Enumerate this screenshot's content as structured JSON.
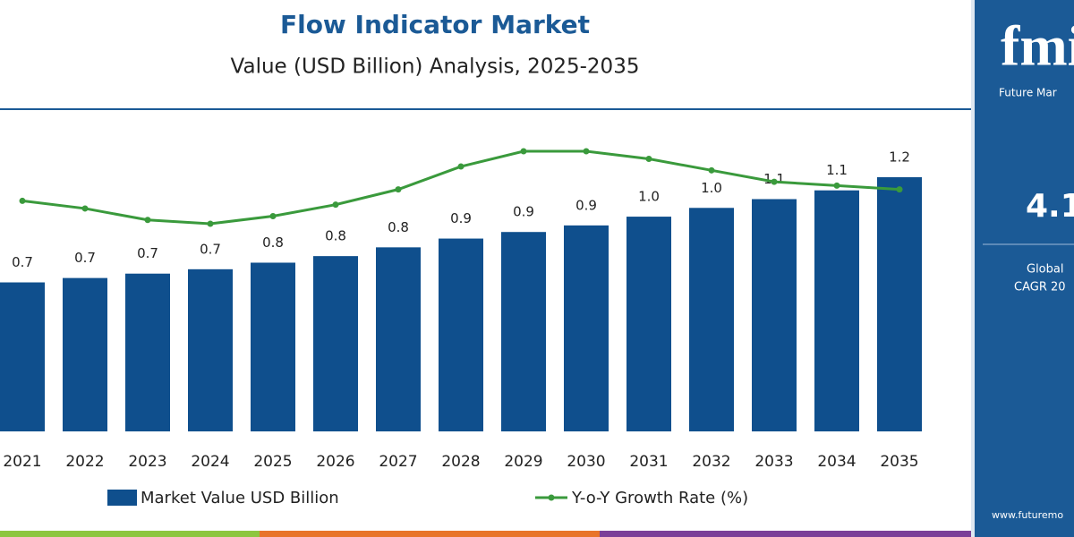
{
  "chart_data": {
    "type": "bar",
    "title": "Flow Indicator Market",
    "subtitle": "Value (USD Billion) Analysis, 2025-2035",
    "categories": [
      "2021",
      "2022",
      "2023",
      "2024",
      "2025",
      "2026",
      "2027",
      "2028",
      "2029",
      "2030",
      "2031",
      "2032",
      "2033",
      "2034",
      "2035"
    ],
    "series": [
      {
        "name": "Market Value USD Billion",
        "type": "bar",
        "color": "#0f4f8d",
        "values": [
          0.68,
          0.7,
          0.72,
          0.74,
          0.77,
          0.8,
          0.84,
          0.88,
          0.91,
          0.94,
          0.98,
          1.02,
          1.06,
          1.1,
          1.16
        ],
        "value_labels": [
          "0.7",
          "0.7",
          "0.7",
          "0.7",
          "0.8",
          "0.8",
          "0.8",
          "0.9",
          "0.9",
          "0.9",
          "1.0",
          "1.0",
          "1.1",
          "1.1",
          "1.2"
        ]
      },
      {
        "name": "Y-o-Y Growth Rate (%)",
        "type": "line",
        "axis": "y2",
        "color": "#3a9a3c",
        "values": [
          3.6,
          3.4,
          3.1,
          3.0,
          3.2,
          3.5,
          3.9,
          4.5,
          4.9,
          4.9,
          4.7,
          4.4,
          4.1,
          4.0,
          3.9
        ]
      }
    ],
    "sidebar": {
      "logo": "fmi",
      "brand": "Future Mar",
      "cagr": "4.1",
      "label1": "Global",
      "label2": "CAGR 20",
      "url": "www.futuremo"
    }
  }
}
